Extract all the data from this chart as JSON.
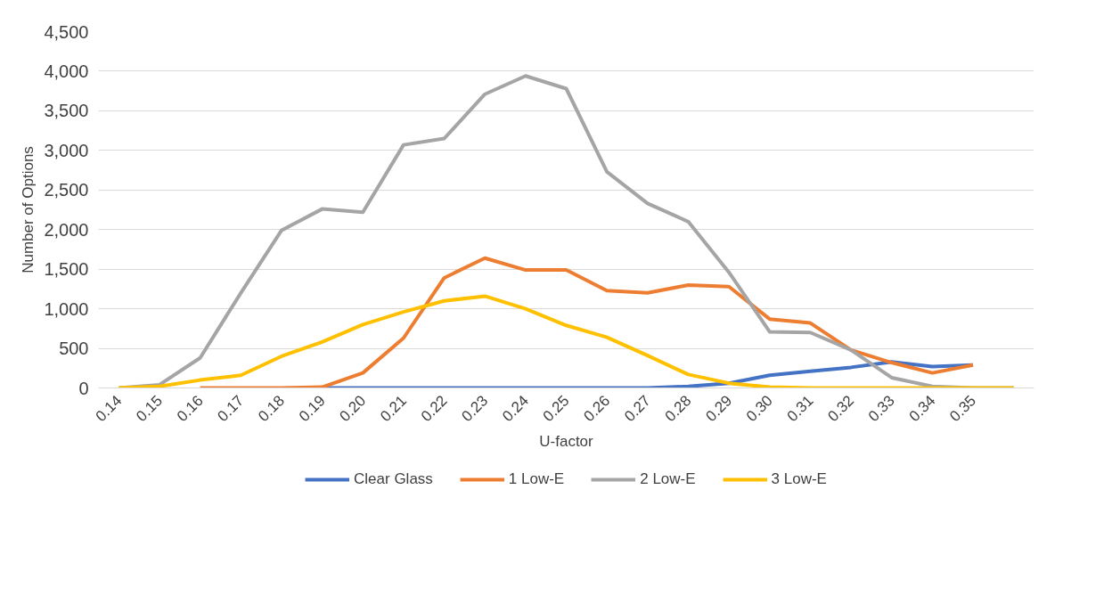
{
  "chart_data": {
    "type": "line",
    "xlabel": "U-factor",
    "ylabel": "Number of Options",
    "categories": [
      "0.14",
      "0.15",
      "0.16",
      "0.17",
      "0.18",
      "0.19",
      "0.20",
      "0.21",
      "0.22",
      "0.23",
      "0.24",
      "0.25",
      "0.26",
      "0.27",
      "0.28",
      "0.29",
      "0.30",
      "0.31",
      "0.32",
      "0.33",
      "0.34",
      "0.35",
      null
    ],
    "series": [
      {
        "name": "Clear Glass",
        "color": "#4472c4",
        "values": [
          null,
          null,
          null,
          null,
          null,
          0,
          0,
          0,
          0,
          0,
          0,
          0,
          0,
          0,
          20,
          60,
          160,
          210,
          260,
          330,
          270,
          290,
          null
        ]
      },
      {
        "name": "1 Low-E",
        "color": "#ed7d31",
        "values": [
          null,
          null,
          0,
          0,
          0,
          10,
          190,
          630,
          1390,
          1640,
          1490,
          1490,
          1230,
          1200,
          1300,
          1280,
          870,
          820,
          480,
          320,
          190,
          290,
          null
        ]
      },
      {
        "name": "2 Low-E",
        "color": "#a5a5a5",
        "values": [
          0,
          40,
          380,
          1200,
          1990,
          2260,
          2220,
          3070,
          3150,
          3710,
          3940,
          3780,
          2730,
          2330,
          2100,
          1460,
          710,
          700,
          480,
          130,
          20,
          0,
          0
        ]
      },
      {
        "name": "3 Low-E",
        "color": "#ffc000",
        "values": [
          0,
          20,
          100,
          160,
          400,
          580,
          800,
          960,
          1100,
          1160,
          1000,
          790,
          640,
          410,
          170,
          60,
          10,
          0,
          0,
          0,
          0,
          0,
          0
        ]
      }
    ],
    "ylim": [
      0,
      4500
    ],
    "yticks": [
      0,
      500,
      {
        "value": 1000,
        "label": "1,000"
      },
      {
        "value": 1500,
        "label": "1,500"
      },
      {
        "value": 2000,
        "label": "2,000"
      },
      {
        "value": 2500,
        "label": "2,500"
      },
      {
        "value": 3000,
        "label": "3,000"
      },
      {
        "value": 3500,
        "label": "3,500"
      },
      {
        "value": 4000,
        "label": "4,000"
      },
      {
        "value": 4500,
        "label": "4,500"
      }
    ],
    "grid": "y",
    "legend": "bottom",
    "line_style": "solid"
  }
}
